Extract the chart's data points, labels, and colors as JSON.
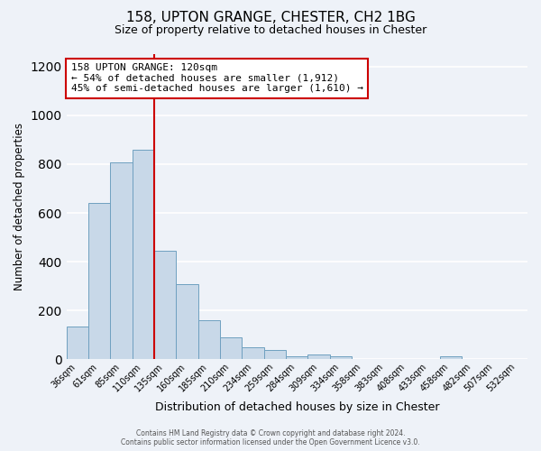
{
  "title": "158, UPTON GRANGE, CHESTER, CH2 1BG",
  "subtitle": "Size of property relative to detached houses in Chester",
  "xlabel": "Distribution of detached houses by size in Chester",
  "ylabel": "Number of detached properties",
  "bar_labels": [
    "36sqm",
    "61sqm",
    "85sqm",
    "110sqm",
    "135sqm",
    "160sqm",
    "185sqm",
    "210sqm",
    "234sqm",
    "259sqm",
    "284sqm",
    "309sqm",
    "334sqm",
    "358sqm",
    "383sqm",
    "408sqm",
    "433sqm",
    "458sqm",
    "482sqm",
    "507sqm",
    "532sqm"
  ],
  "bar_values": [
    135,
    640,
    805,
    860,
    445,
    308,
    160,
    92,
    50,
    40,
    14,
    20,
    12,
    0,
    0,
    0,
    0,
    12,
    0,
    0,
    0
  ],
  "bar_color": "#c8d8e8",
  "bar_edge_color": "#6fa0c0",
  "background_color": "#eef2f8",
  "grid_color": "#ffffff",
  "vline_x": 3.5,
  "vline_color": "#cc0000",
  "annotation_title": "158 UPTON GRANGE: 120sqm",
  "annotation_line1": "← 54% of detached houses are smaller (1,912)",
  "annotation_line2": "45% of semi-detached houses are larger (1,610) →",
  "annotation_box_color": "#ffffff",
  "annotation_box_edge": "#cc0000",
  "ylim": [
    0,
    1250
  ],
  "yticks": [
    0,
    200,
    400,
    600,
    800,
    1000,
    1200
  ],
  "footer_line1": "Contains HM Land Registry data © Crown copyright and database right 2024.",
  "footer_line2": "Contains public sector information licensed under the Open Government Licence v3.0."
}
